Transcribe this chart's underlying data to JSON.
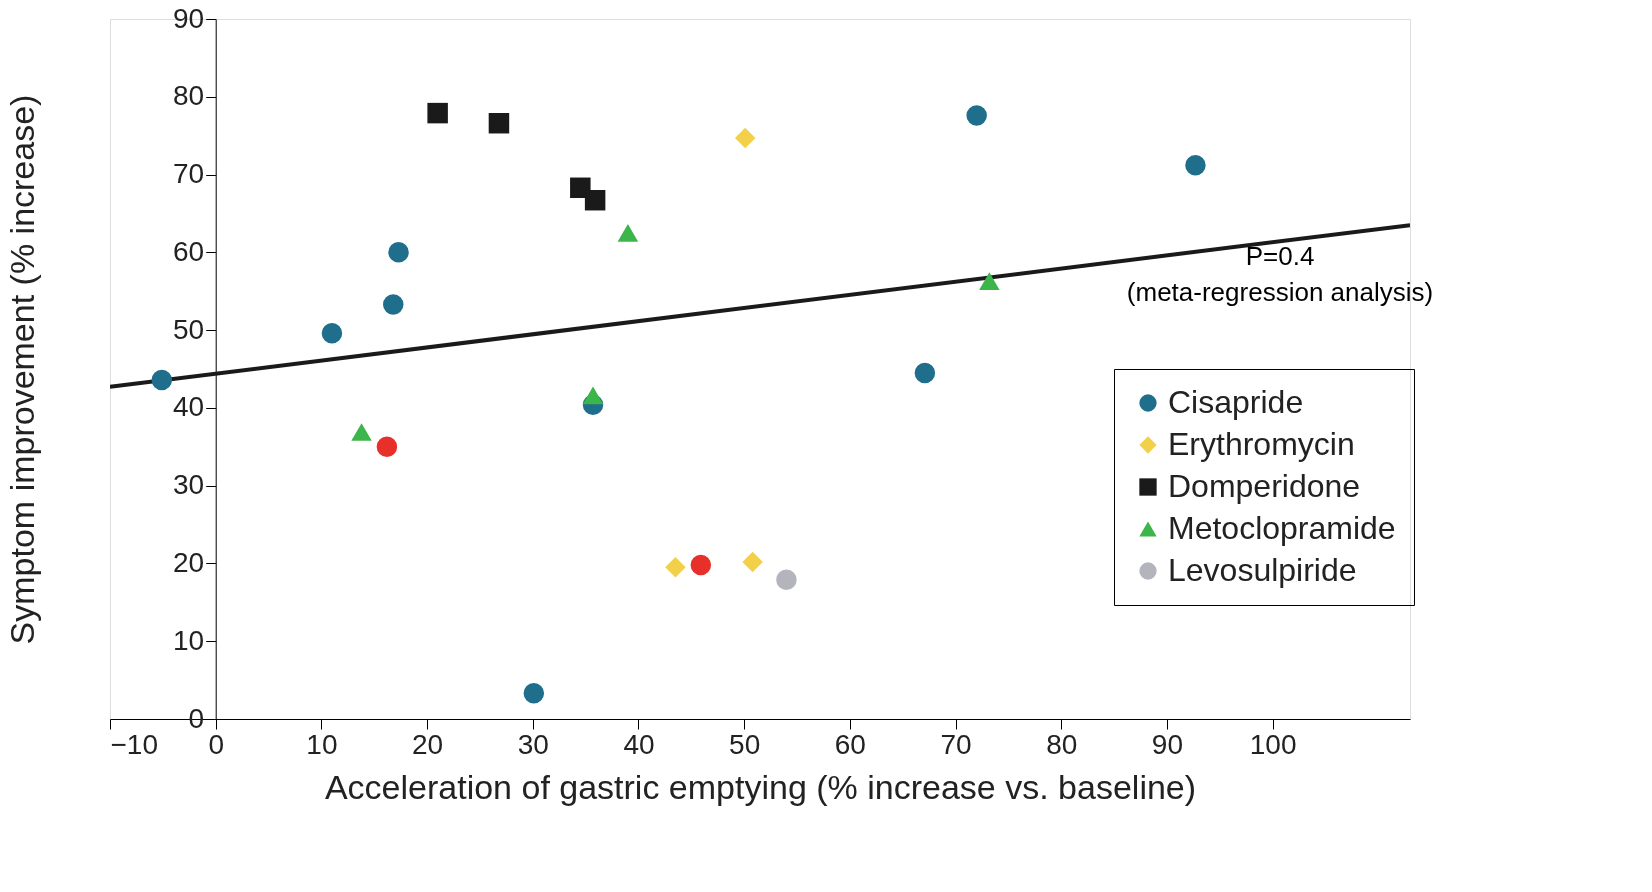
{
  "chart_data": {
    "type": "scatter",
    "xlabel": "Acceleration of gastric emptying (% increase vs. baseline)",
    "ylabel": "Symptom improvement (% increase)",
    "xlim": [
      -10,
      113
    ],
    "xticks": [
      -10,
      0,
      10,
      20,
      30,
      40,
      50,
      60,
      70,
      80,
      90,
      100
    ],
    "ylim": [
      0,
      90
    ],
    "yticks": [
      0,
      10,
      20,
      30,
      40,
      50,
      60,
      70,
      80,
      90
    ],
    "grid": false,
    "legend": "right",
    "annotations": [
      "P=0.4",
      "(meta-regression analysis)"
    ],
    "series": [
      {
        "name": "Cisapride",
        "color": "#1f6e8c",
        "marker": "circle",
        "x": [
          -5.1,
          11.0,
          16.8,
          17.3,
          35.7,
          30.1,
          67.1,
          72.0,
          92.7
        ],
        "values": [
          43.6,
          49.6,
          53.3,
          60.0,
          40.4,
          3.3,
          44.5,
          77.6,
          71.2
        ]
      },
      {
        "name": "Erythromycin",
        "color": "#f2d04a",
        "marker": "diamond",
        "x": [
          50.1,
          43.5,
          50.8
        ],
        "values": [
          74.7,
          19.5,
          20.2
        ]
      },
      {
        "name": "Domperidone",
        "color": "#1a1a1a",
        "marker": "square",
        "x": [
          21.0,
          26.8,
          34.5,
          35.9
        ],
        "values": [
          77.9,
          76.6,
          68.3,
          66.7
        ]
      },
      {
        "name": "Metoclopramide",
        "color": "#3cb54a",
        "marker": "triangle",
        "x": [
          13.8,
          35.7,
          39.0,
          73.2
        ],
        "values": [
          36.9,
          41.6,
          62.5,
          56.3
        ]
      },
      {
        "color": "#e8302a",
        "marker": "circle",
        "x": [
          16.2,
          45.9
        ],
        "values": [
          35.0,
          19.8
        ]
      },
      {
        "name": "Levosulpiride",
        "color": "#b4b4bc",
        "marker": "circle",
        "x": [
          54.0
        ],
        "values": [
          17.9
        ]
      },
      {
        "type": "line",
        "color": "#1a1a1a",
        "x": [
          -10,
          113
        ],
        "values": [
          42.7,
          63.5
        ]
      }
    ]
  }
}
